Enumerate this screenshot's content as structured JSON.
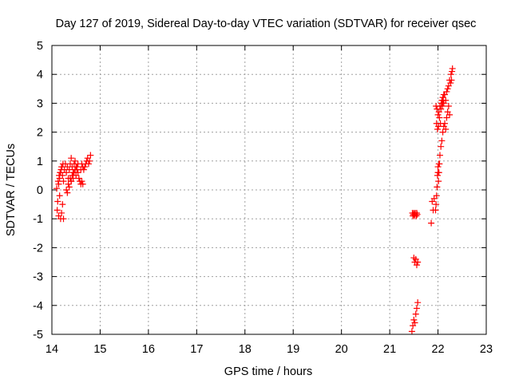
{
  "chart_data": {
    "type": "scatter",
    "title": "Day 127 of 2019, Sidereal Day-to-day VTEC variation (SDTVAR) for receiver qsec",
    "xlabel": "GPS time / hours",
    "ylabel": "SDTVAR / TECUs",
    "xlim": [
      14,
      23
    ],
    "ylim": [
      -5,
      5
    ],
    "xticks": [
      "14",
      "15",
      "16",
      "17",
      "18",
      "19",
      "20",
      "21",
      "22",
      "23"
    ],
    "yticks": [
      "-5",
      "-4",
      "-3",
      "-2",
      "-1",
      "0",
      "1",
      "2",
      "3",
      "4",
      "5"
    ],
    "grid": true,
    "marker": "+",
    "series": [
      {
        "name": "SDTVAR",
        "color": "#ff0000",
        "x": [
          14.1,
          14.11,
          14.12,
          14.13,
          14.14,
          14.15,
          14.16,
          14.17,
          14.18,
          14.19,
          14.2,
          14.21,
          14.22,
          14.23,
          14.24,
          14.14,
          14.16,
          14.18,
          14.2,
          14.22,
          14.24,
          14.26,
          14.28,
          14.3,
          14.32,
          14.34,
          14.36,
          14.38,
          14.4,
          14.42,
          14.44,
          14.46,
          14.48,
          14.5,
          14.52,
          14.54,
          14.4,
          14.42,
          14.44,
          14.46,
          14.48,
          14.5,
          14.52,
          14.54,
          14.56,
          14.58,
          14.6,
          14.62,
          14.64,
          14.6,
          14.62,
          14.64,
          14.66,
          14.68,
          14.7,
          14.72,
          14.74,
          14.76,
          14.78,
          14.8,
          14.3,
          14.32,
          14.34,
          14.36,
          14.38,
          14.4,
          21.46,
          21.48,
          21.5,
          21.52,
          21.54,
          21.56,
          21.58,
          21.5,
          21.52,
          21.54,
          21.56,
          21.58,
          21.47,
          21.48,
          21.49,
          21.5,
          21.51,
          21.52,
          21.53,
          21.55,
          21.56,
          21.57,
          21.86,
          21.88,
          21.9,
          21.92,
          21.96,
          21.97,
          21.98,
          21.99,
          22.0,
          22.01,
          22.02,
          22.03,
          22.04,
          22.05,
          22.06,
          22.07,
          22.08,
          22.09,
          22.1,
          22.11,
          22.12,
          21.95,
          21.96,
          21.97,
          21.98,
          21.99,
          22.0,
          22.01,
          22.02,
          22.03,
          22.0,
          22.02,
          22.04,
          22.06,
          22.08,
          22.1,
          22.12,
          22.14,
          22.16,
          22.18,
          22.2,
          22.22,
          22.24,
          22.1,
          22.12,
          22.14,
          22.16,
          22.18,
          22.2,
          22.22,
          22.24,
          22.26,
          22.27,
          22.28,
          22.29,
          22.3
        ],
        "y": [
          0.05,
          -0.7,
          -0.4,
          0.3,
          -0.9,
          0.5,
          -0.2,
          0.6,
          -1.0,
          0.7,
          -0.8,
          0.8,
          -0.5,
          0.9,
          -1.0,
          0.2,
          0.4,
          0.6,
          0.8,
          0.5,
          0.3,
          0.7,
          0.9,
          0.6,
          0.8,
          0.4,
          0.7,
          0.9,
          1.1,
          0.8,
          0.6,
          0.9,
          1.0,
          0.8,
          0.7,
          0.9,
          0.3,
          0.5,
          0.4,
          0.6,
          0.7,
          0.5,
          0.8,
          0.6,
          0.4,
          0.3,
          0.2,
          0.3,
          0.2,
          0.7,
          0.9,
          0.8,
          0.7,
          0.8,
          0.9,
          1.0,
          1.1,
          0.9,
          1.0,
          1.2,
          0.0,
          -0.1,
          0.2,
          0.1,
          0.4,
          0.3,
          -4.9,
          -4.7,
          -4.5,
          -4.6,
          -4.3,
          -4.1,
          -3.9,
          -2.35,
          -2.5,
          -2.4,
          -2.6,
          -2.5,
          -0.8,
          -0.9,
          -0.85,
          -0.8,
          -0.9,
          -0.85,
          -0.8,
          -0.9,
          -0.8,
          -0.85,
          -1.15,
          -0.4,
          -0.7,
          -0.3,
          2.9,
          2.3,
          2.8,
          2.1,
          2.6,
          2.2,
          2.7,
          2.5,
          2.9,
          2.3,
          2.8,
          3.0,
          3.1,
          2.9,
          3.0,
          3.1,
          3.3,
          -0.7,
          -0.5,
          -0.2,
          0.1,
          0.5,
          0.8,
          0.3,
          0.6,
          0.9,
          0.6,
          0.9,
          1.2,
          1.5,
          1.7,
          2.0,
          2.2,
          2.3,
          2.1,
          2.5,
          2.7,
          2.9,
          2.6,
          3.2,
          3.0,
          3.3,
          3.1,
          3.4,
          3.5,
          3.6,
          3.8,
          3.7,
          4.0,
          3.8,
          4.1,
          4.2
        ]
      }
    ]
  }
}
